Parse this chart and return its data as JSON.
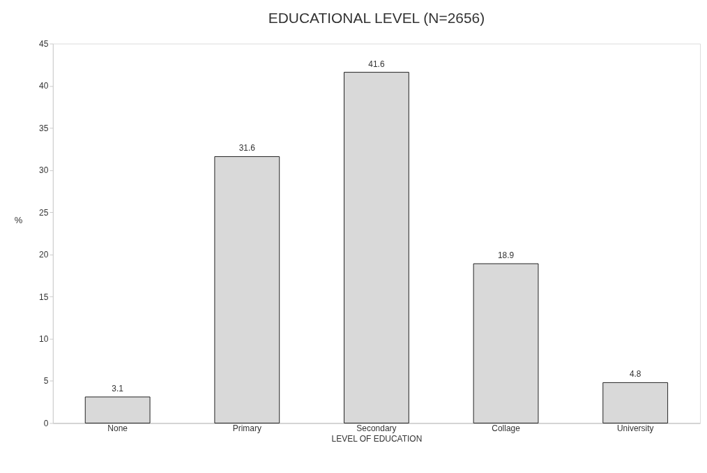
{
  "chart_data": {
    "type": "bar",
    "title": "EDUCATIONAL LEVEL (N=2656)",
    "xlabel": "LEVEL OF EDUCATION",
    "ylabel": "%",
    "categories": [
      "None",
      "Primary",
      "Secondary",
      "Collage",
      "University"
    ],
    "values": [
      3.1,
      31.6,
      41.6,
      18.9,
      4.8
    ],
    "color": "#d9d9d9",
    "ylim": [
      0,
      45
    ],
    "yticks": [
      0,
      5,
      10,
      15,
      20,
      25,
      30,
      35,
      40,
      45
    ],
    "grid": false,
    "data_labels": true
  }
}
